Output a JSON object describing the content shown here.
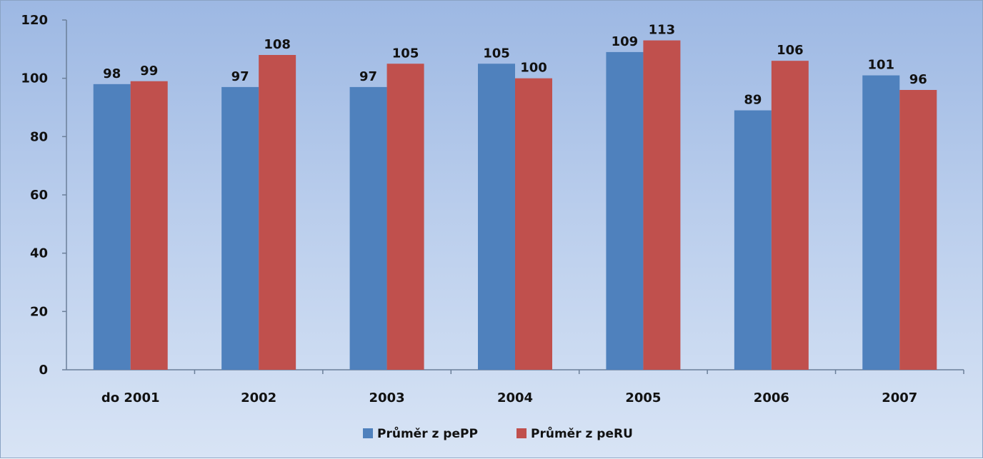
{
  "chart_data": {
    "type": "bar",
    "categories": [
      "do 2001",
      "2002",
      "2003",
      "2004",
      "2005",
      "2006",
      "2007"
    ],
    "series": [
      {
        "name": "Průměr z pePP",
        "color": "#4f81bd",
        "values": [
          98,
          97,
          97,
          105,
          109,
          89,
          101
        ],
        "labels": [
          "98",
          "97",
          "97",
          "105",
          "109",
          "89",
          "101"
        ]
      },
      {
        "name": "Průměr z peRU",
        "color": "#c0504d",
        "values": [
          99,
          108,
          105,
          100,
          113,
          106,
          96
        ],
        "labels": [
          "99",
          "108",
          "105",
          "100",
          "113",
          "106",
          "96"
        ]
      }
    ],
    "yticks": [
      "0",
      "20",
      "40",
      "60",
      "80",
      "100",
      "120"
    ],
    "ylim": [
      0,
      120
    ],
    "grid": false,
    "legend": "bottom",
    "title": "",
    "xlabel": "",
    "ylabel": ""
  }
}
